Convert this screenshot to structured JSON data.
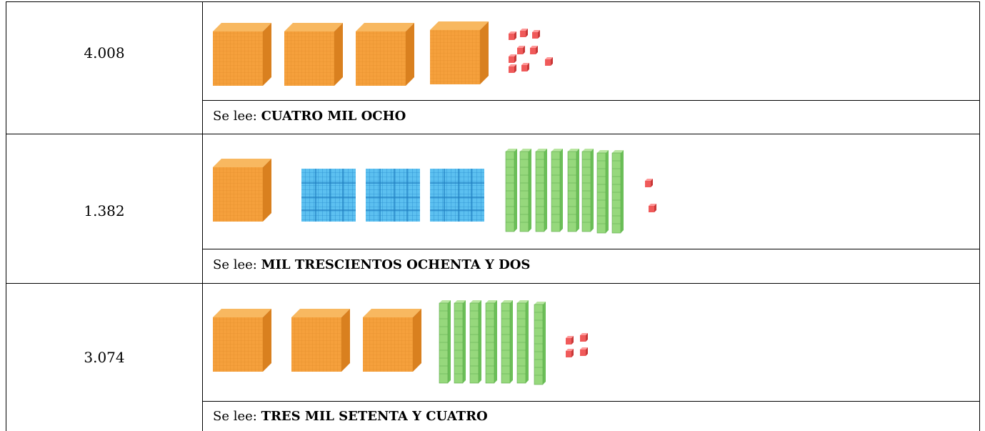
{
  "rows": [
    {
      "number": "4.008",
      "prefix": "Se lee:",
      "reading": "CUATRO MIL OCHO"
    },
    {
      "number": "1.382",
      "prefix": "Se lee:",
      "reading": "MIL TRESCIENTOS OCHENTA Y DOS"
    },
    {
      "number": "3.074",
      "prefix": "Se lee:",
      "reading": "TRES MIL SETENTA Y CUATRO"
    }
  ]
}
